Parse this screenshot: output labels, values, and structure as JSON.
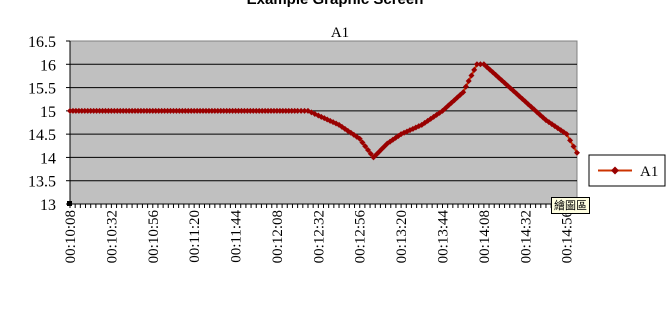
{
  "page": {
    "title": "Example Graphic Screen"
  },
  "tooltip": {
    "text": "繪圖區"
  },
  "colors": {
    "series": "#cc3300",
    "marker": "#990000",
    "plot_area": "#c0c0c0",
    "grid": "#000000"
  },
  "chart_data": {
    "type": "line",
    "title": "A1",
    "xlabel": "",
    "ylabel": "",
    "ylim": [
      13,
      16.5
    ],
    "yticks": [
      "13",
      "13.5",
      "14",
      "14.5",
      "15",
      "15.5",
      "16",
      "16.5"
    ],
    "xticks": [
      "00:10:08",
      "00:10:32",
      "00:10:56",
      "00:11:20",
      "00:11:44",
      "00:12:08",
      "00:12:32",
      "00:12:56",
      "00:13:20",
      "00:13:44",
      "00:14:08",
      "00:14:32",
      "00:14:56"
    ],
    "grid": true,
    "legend": "right",
    "series": [
      {
        "name": "A1",
        "x": [
          "00:10:08",
          "00:10:20",
          "00:10:32",
          "00:10:44",
          "00:10:56",
          "00:11:08",
          "00:11:20",
          "00:11:32",
          "00:11:44",
          "00:11:56",
          "00:12:08",
          "00:12:20",
          "00:12:26",
          "00:12:32",
          "00:12:44",
          "00:12:56",
          "00:13:04",
          "00:13:12",
          "00:13:20",
          "00:13:32",
          "00:13:44",
          "00:13:56",
          "00:14:04",
          "00:14:08",
          "00:14:20",
          "00:14:32",
          "00:14:44",
          "00:14:56",
          "00:15:02"
        ],
        "values": [
          15.0,
          15.0,
          15.0,
          15.0,
          15.0,
          15.0,
          15.0,
          15.0,
          15.0,
          15.0,
          15.0,
          15.0,
          15.0,
          14.9,
          14.7,
          14.4,
          14.0,
          14.3,
          14.5,
          14.7,
          15.0,
          15.4,
          16.0,
          16.0,
          15.6,
          15.2,
          14.8,
          14.5,
          14.1
        ]
      }
    ]
  }
}
